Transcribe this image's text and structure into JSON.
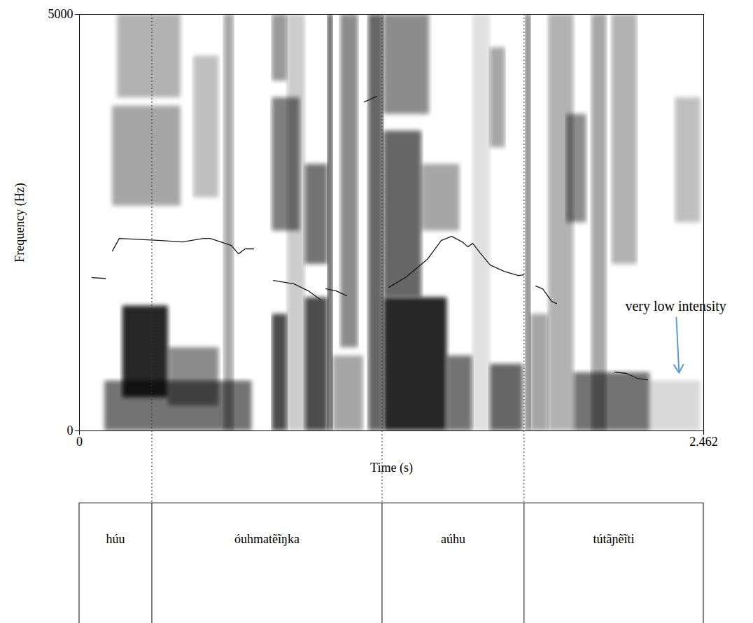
{
  "chart_data": {
    "type": "spectrogram",
    "x_label": "Time (s)",
    "y_label": "Frequency (Hz)",
    "xlim": [
      0,
      2.462
    ],
    "xticks": [
      0,
      2.462
    ],
    "ylim": [
      0,
      5000
    ],
    "yticks": [
      0,
      5000
    ],
    "spectrogram_cells": [
      {
        "t0": 0.1,
        "t1": 0.68,
        "f0": 0,
        "f1": 600,
        "intensity": 0.55
      },
      {
        "t0": 0.17,
        "t1": 0.35,
        "f0": 400,
        "f1": 1500,
        "intensity": 0.85
      },
      {
        "t0": 0.35,
        "t1": 0.55,
        "f0": 300,
        "f1": 1000,
        "intensity": 0.45
      },
      {
        "t0": 0.13,
        "t1": 0.4,
        "f0": 2700,
        "f1": 3900,
        "intensity": 0.35
      },
      {
        "t0": 0.15,
        "t1": 0.4,
        "f0": 4000,
        "f1": 5000,
        "intensity": 0.3
      },
      {
        "t0": 0.57,
        "t1": 0.61,
        "f0": 0,
        "f1": 5000,
        "intensity": 0.35
      },
      {
        "t0": 0.45,
        "t1": 0.55,
        "f0": 2800,
        "f1": 4500,
        "intensity": 0.25
      },
      {
        "t0": 0.76,
        "t1": 0.82,
        "f0": 0,
        "f1": 1400,
        "intensity": 0.7
      },
      {
        "t0": 0.76,
        "t1": 0.87,
        "f0": 2400,
        "f1": 4000,
        "intensity": 0.5
      },
      {
        "t0": 0.76,
        "t1": 0.82,
        "f0": 4200,
        "f1": 5000,
        "intensity": 0.4
      },
      {
        "t0": 0.82,
        "t1": 0.89,
        "f0": 0,
        "f1": 5000,
        "intensity": 0.2
      },
      {
        "t0": 0.89,
        "t1": 0.98,
        "f0": 0,
        "f1": 1600,
        "intensity": 0.7
      },
      {
        "t0": 0.89,
        "t1": 0.98,
        "f0": 2000,
        "f1": 3200,
        "intensity": 0.55
      },
      {
        "t0": 0.98,
        "t1": 1.0,
        "f0": 0,
        "f1": 5000,
        "intensity": 0.7
      },
      {
        "t0": 1.0,
        "t1": 1.12,
        "f0": 0,
        "f1": 900,
        "intensity": 0.35
      },
      {
        "t0": 1.03,
        "t1": 1.1,
        "f0": 1000,
        "f1": 5000,
        "intensity": 0.45
      },
      {
        "t0": 1.14,
        "t1": 1.2,
        "f0": 0,
        "f1": 5000,
        "intensity": 0.6
      },
      {
        "t0": 1.2,
        "t1": 1.45,
        "f0": 0,
        "f1": 1600,
        "intensity": 0.85
      },
      {
        "t0": 1.2,
        "t1": 1.35,
        "f0": 1600,
        "f1": 3600,
        "intensity": 0.6
      },
      {
        "t0": 1.2,
        "t1": 1.38,
        "f0": 3800,
        "f1": 5000,
        "intensity": 0.45
      },
      {
        "t0": 1.45,
        "t1": 1.55,
        "f0": 0,
        "f1": 900,
        "intensity": 0.55
      },
      {
        "t0": 1.35,
        "t1": 1.5,
        "f0": 2400,
        "f1": 3200,
        "intensity": 0.35
      },
      {
        "t0": 1.62,
        "t1": 1.68,
        "f0": 3400,
        "f1": 4600,
        "intensity": 0.35
      },
      {
        "t0": 1.62,
        "t1": 1.75,
        "f0": 0,
        "f1": 800,
        "intensity": 0.6
      },
      {
        "t0": 1.55,
        "t1": 1.62,
        "f0": 0,
        "f1": 5000,
        "intensity": 0.12
      },
      {
        "t0": 1.76,
        "t1": 1.78,
        "f0": 0,
        "f1": 5000,
        "intensity": 0.55
      },
      {
        "t0": 1.78,
        "t1": 1.85,
        "f0": 0,
        "f1": 1400,
        "intensity": 0.35
      },
      {
        "t0": 1.85,
        "t1": 1.95,
        "f0": 0,
        "f1": 5000,
        "intensity": 0.3
      },
      {
        "t0": 1.92,
        "t1": 2.0,
        "f0": 2500,
        "f1": 3800,
        "intensity": 0.45
      },
      {
        "t0": 1.95,
        "t1": 2.25,
        "f0": 0,
        "f1": 700,
        "intensity": 0.55
      },
      {
        "t0": 2.02,
        "t1": 2.08,
        "f0": 0,
        "f1": 5000,
        "intensity": 0.35
      },
      {
        "t0": 2.1,
        "t1": 2.2,
        "f0": 2000,
        "f1": 5000,
        "intensity": 0.3
      },
      {
        "t0": 2.25,
        "t1": 2.45,
        "f0": 0,
        "f1": 600,
        "intensity": 0.15
      },
      {
        "t0": 2.35,
        "t1": 2.45,
        "f0": 2500,
        "f1": 4000,
        "intensity": 0.25
      }
    ],
    "pitch_track": {
      "t": [
        0.05,
        0.102,
        null,
        0.13,
        0.157,
        0.323,
        0.406,
        0.489,
        0.516,
        0.599,
        0.627,
        0.654,
        0.687,
        null,
        0.765,
        0.847,
        0.903,
        0.952,
        null,
        0.972,
        1.013,
        1.054,
        null,
        1.123,
        1.173,
        null,
        1.22,
        1.289,
        1.372,
        1.427,
        1.468,
        1.51,
        1.532,
        1.551,
        1.579,
        1.62,
        1.675,
        1.731,
        1.753,
        null,
        1.8,
        1.827,
        1.863,
        1.882,
        null,
        2.112,
        2.158,
        2.2,
        2.241
      ],
      "values": [
        1840,
        1830,
        null,
        2159,
        2310,
        2285,
        2268,
        2310,
        2310,
        2226,
        2125,
        2185,
        2185,
        null,
        1806,
        1764,
        1680,
        1571,
        null,
        1705,
        1680,
        1621,
        null,
        3948,
        4015,
        null,
        1722,
        1848,
        2058,
        2285,
        2335,
        2268,
        2209,
        2251,
        2142,
        1991,
        1915,
        1865,
        1873,
        null,
        1739,
        1705,
        1554,
        1529,
        null,
        706,
        689,
        630,
        613
      ]
    },
    "annotations": [
      {
        "text": "very low intensity",
        "at": [
          2.352,
          1495
        ],
        "arrow_to": [
          2.365,
          697
        ],
        "color": "#5b9bd5"
      }
    ],
    "intervals": [
      {
        "start": 0,
        "end": 0.287,
        "label": "húu"
      },
      {
        "start": 0.287,
        "end": 1.195,
        "label": "óuhmatẽĩŋka"
      },
      {
        "start": 1.195,
        "end": 1.755,
        "label": "aúhu"
      },
      {
        "start": 1.755,
        "end": 2.462,
        "label": "tútãɲẽĩti"
      }
    ]
  }
}
